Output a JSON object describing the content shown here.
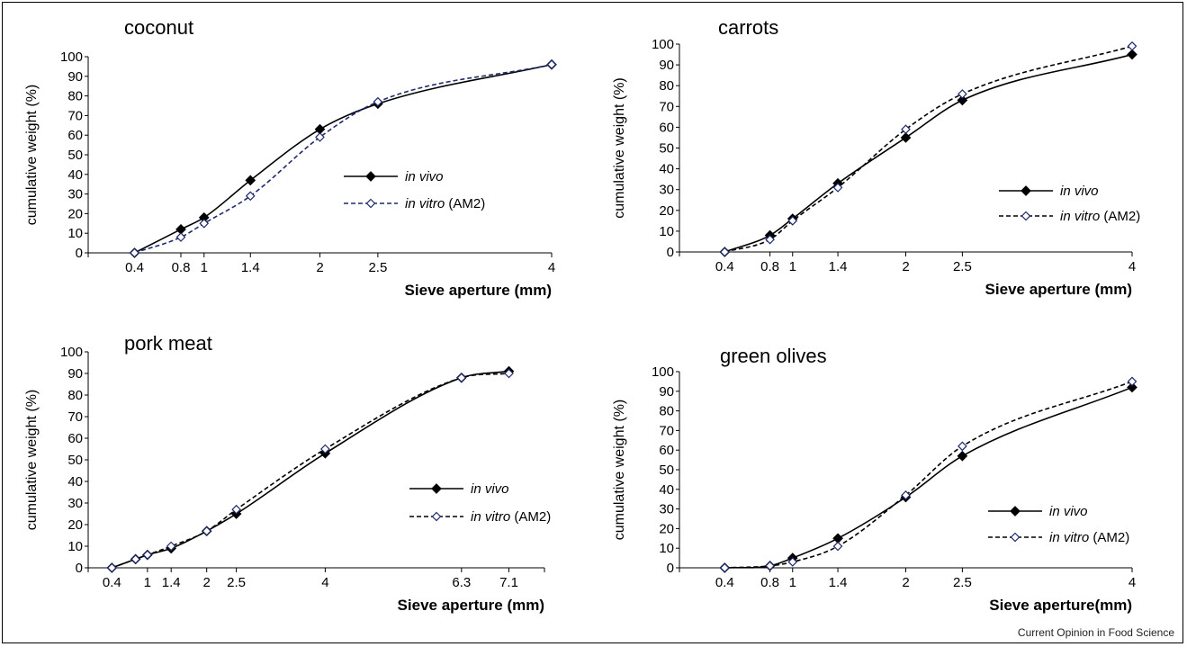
{
  "credit": "Current Opinion in Food Science",
  "series_labels": {
    "in_vivo": "in vivo",
    "in_vitro_italic": "in vitro",
    "in_vitro_suffix": " (AM2)"
  },
  "colors": {
    "in_vivo": "#000000",
    "in_vitro_coconut": "#1e2a6e",
    "in_vitro_marker": "#1e2a6e",
    "text": "#000000"
  },
  "chart_data": [
    {
      "type": "line",
      "title": "coconut",
      "xlabel": "Sieve aperture (mm)",
      "ylabel": "cumulative weight (%)",
      "ylim": [
        0,
        100
      ],
      "xlim": [
        0,
        4
      ],
      "x_ticks": [
        0.4,
        0.8,
        1,
        1.4,
        2,
        2.5,
        4
      ],
      "y_ticks": [
        0,
        10,
        20,
        30,
        40,
        50,
        60,
        70,
        80,
        90,
        100
      ],
      "legend": "center-right",
      "series": [
        {
          "name": "in vivo",
          "x": [
            0.4,
            0.8,
            1,
            1.4,
            2,
            2.5,
            4
          ],
          "y": [
            0,
            12,
            18,
            37,
            63,
            76,
            96
          ]
        },
        {
          "name": "in vitro (AM2)",
          "x": [
            0.4,
            0.8,
            1,
            1.4,
            2,
            2.5,
            4
          ],
          "y": [
            0,
            8,
            15,
            29,
            59,
            77,
            96
          ]
        }
      ]
    },
    {
      "type": "line",
      "title": "carrots",
      "xlabel": "Sieve aperture (mm)",
      "ylabel": "cumulative weight (%)",
      "ylim": [
        0,
        100
      ],
      "xlim": [
        0,
        4
      ],
      "x_ticks": [
        0.4,
        0.8,
        1,
        1.4,
        2,
        2.5,
        4
      ],
      "y_ticks": [
        0,
        10,
        20,
        30,
        40,
        50,
        60,
        70,
        80,
        90,
        100
      ],
      "legend": "center-right",
      "series": [
        {
          "name": "in vivo",
          "x": [
            0.4,
            0.8,
            1,
            1.4,
            2,
            2.5,
            4
          ],
          "y": [
            0,
            8,
            16,
            33,
            55,
            73,
            95
          ]
        },
        {
          "name": "in vitro (AM2)",
          "x": [
            0.4,
            0.8,
            1,
            1.4,
            2,
            2.5,
            4
          ],
          "y": [
            0,
            6,
            15,
            31,
            59,
            76,
            99
          ]
        }
      ]
    },
    {
      "type": "line",
      "title": "pork meat",
      "xlabel": "Sieve aperture (mm)",
      "ylabel": "cumulative weight (%)",
      "ylim": [
        0,
        100
      ],
      "xlim": [
        0,
        7.7
      ],
      "x_ticks": [
        0.4,
        1,
        1.4,
        2,
        2.5,
        4,
        6.3,
        7.1
      ],
      "y_ticks": [
        0,
        10,
        20,
        30,
        40,
        50,
        60,
        70,
        80,
        90,
        100
      ],
      "legend": "center-right",
      "series": [
        {
          "name": "in vivo",
          "x": [
            0.4,
            0.8,
            1,
            1.4,
            2,
            2.5,
            4,
            6.3,
            7.1
          ],
          "y": [
            0,
            4,
            6,
            9,
            17,
            25,
            53,
            88,
            91
          ]
        },
        {
          "name": "in vitro (AM2)",
          "x": [
            0.4,
            0.8,
            1,
            1.4,
            2,
            2.5,
            4,
            6.3,
            7.1
          ],
          "y": [
            0,
            4,
            6,
            10,
            17,
            27,
            55,
            88,
            90
          ]
        }
      ]
    },
    {
      "type": "line",
      "title": "green olives",
      "xlabel": "Sieve aperture(mm)",
      "ylabel": "cumulative weight (%)",
      "ylim": [
        0,
        100
      ],
      "xlim": [
        0,
        4
      ],
      "x_ticks": [
        0.4,
        0.8,
        1,
        1.4,
        2,
        2.5,
        4
      ],
      "y_ticks": [
        0,
        10,
        20,
        30,
        40,
        50,
        60,
        70,
        80,
        90,
        100
      ],
      "legend": "bottom-right",
      "series": [
        {
          "name": "in vivo",
          "x": [
            0.4,
            0.8,
            1,
            1.4,
            2,
            2.5,
            4
          ],
          "y": [
            0,
            1,
            5,
            15,
            36,
            57,
            92
          ]
        },
        {
          "name": "in vitro (AM2)",
          "x": [
            0.4,
            0.8,
            1,
            1.4,
            2,
            2.5,
            4
          ],
          "y": [
            0,
            1,
            3,
            11,
            37,
            62,
            95
          ]
        }
      ]
    }
  ]
}
